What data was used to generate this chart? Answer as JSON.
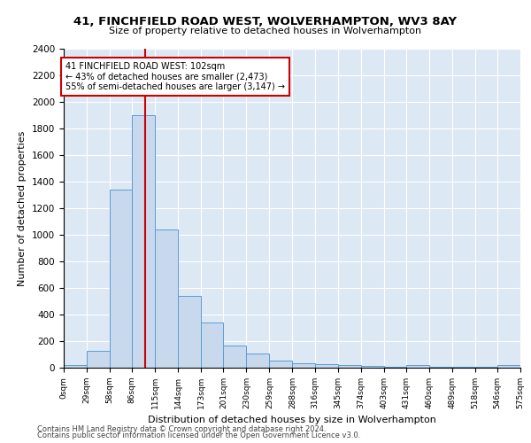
{
  "title": "41, FINCHFIELD ROAD WEST, WOLVERHAMPTON, WV3 8AY",
  "subtitle": "Size of property relative to detached houses in Wolverhampton",
  "xlabel": "Distribution of detached houses by size in Wolverhampton",
  "ylabel": "Number of detached properties",
  "footnote1": "Contains HM Land Registry data © Crown copyright and database right 2024.",
  "footnote2": "Contains public sector information licensed under the Open Government Licence v3.0.",
  "annotation_title": "41 FINCHFIELD ROAD WEST: 102sqm",
  "annotation_line2": "← 43% of detached houses are smaller (2,473)",
  "annotation_line3": "55% of semi-detached houses are larger (3,147) →",
  "property_size": 102,
  "bin_edges": [
    0,
    29,
    58,
    86,
    115,
    144,
    173,
    201,
    230,
    259,
    288,
    316,
    345,
    374,
    403,
    431,
    460,
    489,
    518,
    546,
    575
  ],
  "bar_heights": [
    20,
    130,
    1340,
    1900,
    1040,
    540,
    340,
    165,
    105,
    55,
    35,
    30,
    20,
    15,
    5,
    20,
    5,
    5,
    5,
    20
  ],
  "bar_color": "#c8d9ed",
  "bar_edgecolor": "#5b9bd5",
  "vline_color": "#cc0000",
  "vline_x": 102,
  "annotation_box_color": "#cc0000",
  "background_color": "#dde8f5",
  "ylim": [
    0,
    2400
  ],
  "yticks": [
    0,
    200,
    400,
    600,
    800,
    1000,
    1200,
    1400,
    1600,
    1800,
    2000,
    2200,
    2400
  ],
  "tick_labels": [
    "0sqm",
    "29sqm",
    "58sqm",
    "86sqm",
    "115sqm",
    "144sqm",
    "173sqm",
    "201sqm",
    "230sqm",
    "259sqm",
    "288sqm",
    "316sqm",
    "345sqm",
    "374sqm",
    "403sqm",
    "431sqm",
    "460sqm",
    "489sqm",
    "518sqm",
    "546sqm",
    "575sqm"
  ]
}
